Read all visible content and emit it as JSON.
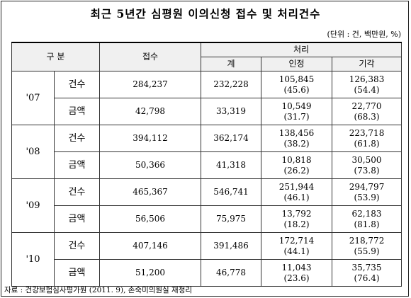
{
  "title": "최근 5년간 심평원 이의신청 접수 및 처리건수",
  "unit": "(단위 : 건, 백만원, %)",
  "header": {
    "category": "구 분",
    "received": "접수",
    "processed": "처리",
    "total": "계",
    "accepted": "인정",
    "rejected": "기각"
  },
  "groups": [
    {
      "year": "'07",
      "rows": [
        {
          "label": "건수",
          "received": "284,237",
          "total": "232,228",
          "accepted": "105,845",
          "accepted_pct": "(45.6)",
          "rejected": "126,383",
          "rejected_pct": "(54.4)"
        },
        {
          "label": "금액",
          "received": "42,798",
          "total": "33,319",
          "accepted": "10,549",
          "accepted_pct": "(31.7)",
          "rejected": "22,770",
          "rejected_pct": "(68.3)"
        }
      ]
    },
    {
      "year": "'08",
      "rows": [
        {
          "label": "건수",
          "received": "394,112",
          "total": "362,174",
          "accepted": "138,456",
          "accepted_pct": "(38.2)",
          "rejected": "223,718",
          "rejected_pct": "(61.8)"
        },
        {
          "label": "금액",
          "received": "50,366",
          "total": "41,318",
          "accepted": "10,818",
          "accepted_pct": "(26.2)",
          "rejected": "30,500",
          "rejected_pct": "(73.8)"
        }
      ]
    },
    {
      "year": "'09",
      "rows": [
        {
          "label": "건수",
          "received": "465,367",
          "total": "546,741",
          "accepted": "251,944",
          "accepted_pct": "(46.1)",
          "rejected": "294,797",
          "rejected_pct": "(53.9)"
        },
        {
          "label": "금액",
          "received": "56,506",
          "total": "75,975",
          "accepted": "13,792",
          "accepted_pct": "(18.2)",
          "rejected": "62,183",
          "rejected_pct": "(81.8)"
        }
      ]
    },
    {
      "year": "'10",
      "rows": [
        {
          "label": "건수",
          "received": "407,146",
          "total": "391,486",
          "accepted": "172,714",
          "accepted_pct": "(44.1)",
          "rejected": "218,772",
          "rejected_pct": "(55.9)"
        },
        {
          "label": "금액",
          "received": "51,200",
          "total": "46,778",
          "accepted": "11,043",
          "accepted_pct": "(23.6)",
          "rejected": "35,735",
          "rejected_pct": "(76.4)"
        }
      ]
    }
  ],
  "source": "자료 : 건강보험심사평가원 (2011. 9), 손숙미의원실 재정리"
}
